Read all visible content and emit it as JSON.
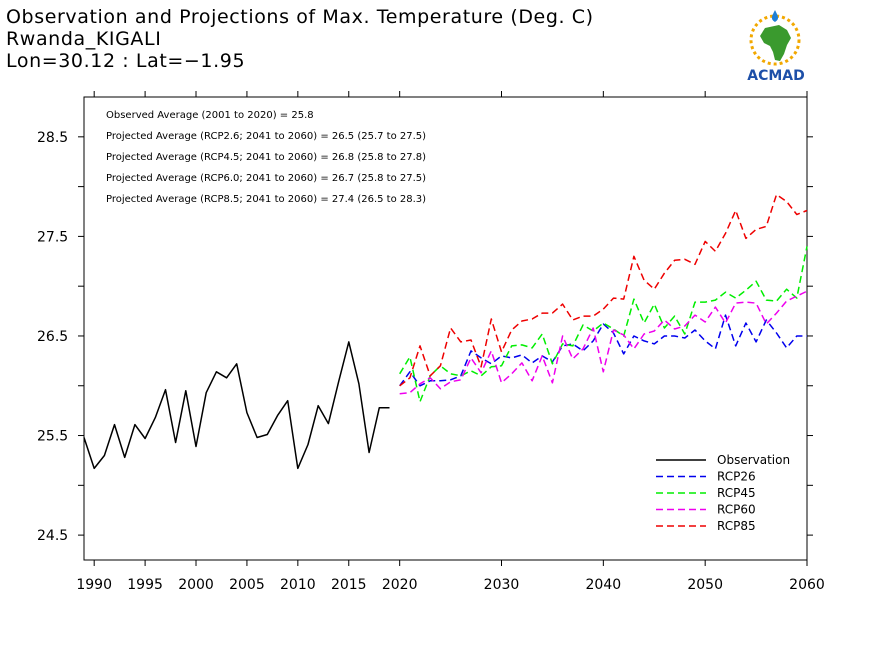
{
  "titles": {
    "line1": "Observation and Projections of Max. Temperature (Deg. C)",
    "line2": "Rwanda_KIGALI",
    "line3": "Lon=30.12 : Lat=−1.95"
  },
  "logo": {
    "text": "ACMAD",
    "colors": {
      "africa": "#3a9a2e",
      "text": "#1d4fa8",
      "sun": "#f2a800",
      "drop": "#1d7fd6"
    }
  },
  "chart_data": {
    "type": "line",
    "title": "Observation and Projections of Max. Temperature (Deg. C)",
    "xlabel": "",
    "ylabel": "",
    "xlim": [
      1989,
      2060
    ],
    "ylim": [
      24.25,
      28.9
    ],
    "grid": false,
    "legend_position": "bottom-right",
    "x_ticks": [
      1990,
      1995,
      2000,
      2005,
      2010,
      2015,
      2020,
      2030,
      2040,
      2050,
      2060
    ],
    "y_ticks": [
      24.5,
      25.5,
      26.5,
      27.5,
      28.5
    ],
    "x_tick_labels": [
      "1990",
      "1995",
      "2000",
      "2005",
      "2010",
      "2015",
      "2020",
      "2030",
      "2040",
      "2050",
      "2060"
    ],
    "y_tick_labels": [
      "24.5",
      "25.5",
      "26.5",
      "27.5",
      "28.5"
    ],
    "annotations": [
      "Observed Average (2001 to 2020) = 25.8",
      "Projected Average (RCP2.6; 2041 to 2060) = 26.5 (25.7 to 27.5)",
      "Projected Average (RCP4.5; 2041 to 2060) = 26.8 (25.8 to 27.8)",
      "Projected Average (RCP6.0; 2041 to 2060) = 26.7 (25.8 to 27.5)",
      "Projected Average (RCP8.5; 2041 to 2060) = 27.4 (26.5 to 28.3)"
    ],
    "series": [
      {
        "name": "Observation",
        "color": "#000000",
        "dashed": false,
        "x": [
          1989,
          1990,
          1991,
          1992,
          1993,
          1994,
          1995,
          1996,
          1997,
          1998,
          1999,
          2000,
          2001,
          2002,
          2003,
          2004,
          2005,
          2006,
          2007,
          2008,
          2009,
          2010,
          2011,
          2012,
          2013,
          2014,
          2015,
          2016,
          2017,
          2018,
          2019
        ],
        "y": [
          25.48,
          25.17,
          25.3,
          25.61,
          25.28,
          25.61,
          25.47,
          25.68,
          25.96,
          25.43,
          25.95,
          25.39,
          25.93,
          26.14,
          26.08,
          26.22,
          25.73,
          25.48,
          25.51,
          25.7,
          25.85,
          25.17,
          25.41,
          25.8,
          25.62,
          26.04,
          26.44,
          26.02,
          25.33,
          25.78,
          25.78
        ]
      },
      {
        "name": "RCP26",
        "color": "#0000ee",
        "dashed": true,
        "x": [
          2020,
          2021,
          2022,
          2023,
          2024,
          2025,
          2026,
          2027,
          2028,
          2029,
          2030,
          2031,
          2032,
          2033,
          2034,
          2035,
          2036,
          2037,
          2038,
          2039,
          2040,
          2041,
          2042,
          2043,
          2044,
          2045,
          2046,
          2047,
          2048,
          2049,
          2050,
          2051,
          2052,
          2053,
          2054,
          2055,
          2056,
          2057,
          2058,
          2059,
          2060
        ],
        "y": [
          26.0,
          26.14,
          26.0,
          26.05,
          26.05,
          26.06,
          26.1,
          26.35,
          26.28,
          26.22,
          26.3,
          26.28,
          26.31,
          26.23,
          26.3,
          26.24,
          26.4,
          26.42,
          26.35,
          26.45,
          26.62,
          26.53,
          26.32,
          26.5,
          26.45,
          26.42,
          26.5,
          26.5,
          26.48,
          26.56,
          26.45,
          26.37,
          26.71,
          26.4,
          26.63,
          26.44,
          26.66,
          26.53,
          26.38,
          26.5,
          26.5
        ]
      },
      {
        "name": "RCP45",
        "color": "#00ee00",
        "dashed": true,
        "x": [
          2020,
          2021,
          2022,
          2023,
          2024,
          2025,
          2026,
          2027,
          2028,
          2029,
          2030,
          2031,
          2032,
          2033,
          2034,
          2035,
          2036,
          2037,
          2038,
          2039,
          2040,
          2041,
          2042,
          2043,
          2044,
          2045,
          2046,
          2047,
          2048,
          2049,
          2050,
          2051,
          2052,
          2053,
          2054,
          2055,
          2056,
          2057,
          2058,
          2059,
          2060
        ],
        "y": [
          26.12,
          26.29,
          25.84,
          26.1,
          26.2,
          26.12,
          26.1,
          26.15,
          26.1,
          26.19,
          26.2,
          26.4,
          26.41,
          26.38,
          26.52,
          26.22,
          26.42,
          26.4,
          26.61,
          26.55,
          26.63,
          26.57,
          26.5,
          26.87,
          26.63,
          26.82,
          26.58,
          26.7,
          26.52,
          26.84,
          26.84,
          26.86,
          26.94,
          26.88,
          26.96,
          27.05,
          26.86,
          26.85,
          26.97,
          26.88,
          27.4
        ]
      },
      {
        "name": "RCP60",
        "color": "#ee00ee",
        "dashed": true,
        "x": [
          2020,
          2021,
          2022,
          2023,
          2024,
          2025,
          2026,
          2027,
          2028,
          2029,
          2030,
          2031,
          2032,
          2033,
          2034,
          2035,
          2036,
          2037,
          2038,
          2039,
          2040,
          2041,
          2042,
          2043,
          2044,
          2045,
          2046,
          2047,
          2048,
          2049,
          2050,
          2051,
          2052,
          2053,
          2054,
          2055,
          2056,
          2057,
          2058,
          2059,
          2060
        ],
        "y": [
          25.92,
          25.93,
          26.02,
          26.08,
          25.97,
          26.04,
          26.06,
          26.28,
          26.13,
          26.35,
          26.03,
          26.12,
          26.23,
          26.05,
          26.3,
          26.03,
          26.5,
          26.27,
          26.37,
          26.58,
          26.14,
          26.56,
          26.51,
          26.37,
          26.52,
          26.55,
          26.66,
          26.57,
          26.6,
          26.71,
          26.64,
          26.79,
          26.63,
          26.83,
          26.84,
          26.83,
          26.62,
          26.73,
          26.85,
          26.9,
          26.95
        ]
      },
      {
        "name": "RCP85",
        "color": "#ee0000",
        "dashed": true,
        "x": [
          2020,
          2021,
          2022,
          2023,
          2024,
          2025,
          2026,
          2027,
          2028,
          2029,
          2030,
          2031,
          2032,
          2033,
          2034,
          2035,
          2036,
          2037,
          2038,
          2039,
          2040,
          2041,
          2042,
          2043,
          2044,
          2045,
          2046,
          2047,
          2048,
          2049,
          2050,
          2051,
          2052,
          2053,
          2054,
          2055,
          2056,
          2057,
          2058,
          2059,
          2060
        ],
        "y": [
          26.0,
          26.08,
          26.4,
          26.1,
          26.2,
          26.58,
          26.44,
          26.46,
          26.19,
          26.67,
          26.34,
          26.56,
          26.65,
          26.67,
          26.73,
          26.73,
          26.82,
          26.66,
          26.7,
          26.7,
          26.77,
          26.88,
          26.87,
          27.3,
          27.06,
          26.97,
          27.13,
          27.26,
          27.27,
          27.22,
          27.45,
          27.35,
          27.53,
          27.76,
          27.48,
          27.57,
          27.6,
          27.92,
          27.85,
          27.72,
          27.76
        ]
      }
    ]
  }
}
